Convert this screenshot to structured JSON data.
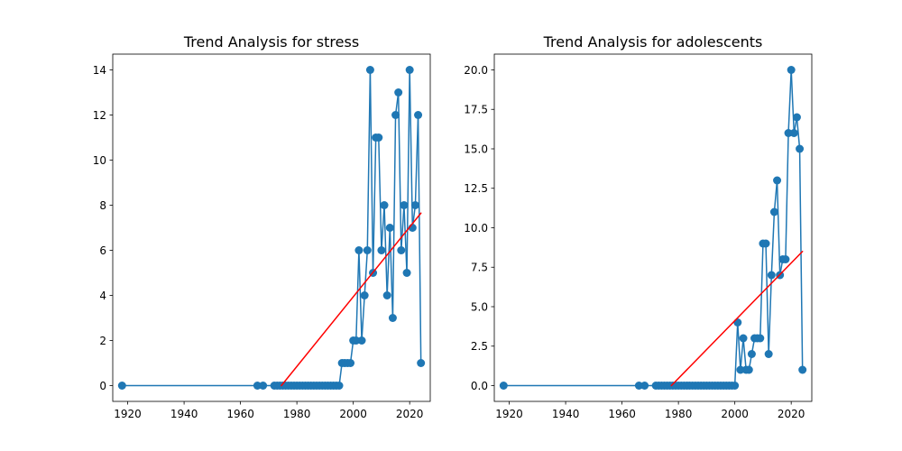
{
  "chart_data": [
    {
      "type": "line",
      "title": "Trend Analysis for stress",
      "xlabel": "",
      "ylabel": "",
      "xlim": [
        1914.7,
        2027.3
      ],
      "ylim": [
        -0.7,
        14.7
      ],
      "xticks": [
        "1920",
        "1940",
        "1960",
        "1980",
        "2000",
        "2020"
      ],
      "xtick_values": [
        1920,
        1940,
        1960,
        1980,
        2000,
        2020
      ],
      "yticks": [
        "0",
        "2",
        "4",
        "6",
        "8",
        "10",
        "12",
        "14"
      ],
      "ytick_values": [
        0,
        2,
        4,
        6,
        8,
        10,
        12,
        14
      ],
      "grid": false,
      "series": [
        {
          "style": "line-markers",
          "color": "#1f77b4",
          "x": [
            1918,
            1966,
            1968,
            1972,
            1973,
            1974,
            1975,
            1976,
            1977,
            1978,
            1979,
            1980,
            1981,
            1982,
            1983,
            1984,
            1985,
            1986,
            1987,
            1988,
            1989,
            1990,
            1991,
            1992,
            1993,
            1994,
            1995,
            1996,
            1997,
            1998,
            1999,
            2000,
            2001,
            2002,
            2003,
            2004,
            2005,
            2006,
            2007,
            2008,
            2009,
            2010,
            2011,
            2012,
            2013,
            2014,
            2015,
            2016,
            2017,
            2018,
            2019,
            2020,
            2021,
            2022,
            2023,
            2024
          ],
          "y": [
            0,
            0,
            0,
            0,
            0,
            0,
            0,
            0,
            0,
            0,
            0,
            0,
            0,
            0,
            0,
            0,
            0,
            0,
            0,
            0,
            0,
            0,
            0,
            0,
            0,
            0,
            0,
            1,
            1,
            1,
            1,
            2,
            2,
            6,
            2,
            4,
            6,
            14,
            5,
            11,
            11,
            6,
            8,
            4,
            7,
            3,
            12,
            13,
            6,
            8,
            5,
            14,
            7,
            8,
            12,
            1
          ]
        },
        {
          "style": "trend-line",
          "color": "#ff0000",
          "x": [
            1974.5,
            2024
          ],
          "y": [
            0,
            7.65
          ]
        }
      ]
    },
    {
      "type": "line",
      "title": "Trend Analysis for adolescents",
      "xlabel": "",
      "ylabel": "",
      "xlim": [
        1914.7,
        2027.3
      ],
      "ylim": [
        -1.0,
        21.0
      ],
      "xticks": [
        "1920",
        "1940",
        "1960",
        "1980",
        "2000",
        "2020"
      ],
      "xtick_values": [
        1920,
        1940,
        1960,
        1980,
        2000,
        2020
      ],
      "yticks": [
        "0.0",
        "2.5",
        "5.0",
        "7.5",
        "10.0",
        "12.5",
        "15.0",
        "17.5",
        "20.0"
      ],
      "ytick_values": [
        0,
        2.5,
        5,
        7.5,
        10,
        12.5,
        15,
        17.5,
        20
      ],
      "grid": false,
      "series": [
        {
          "style": "line-markers",
          "color": "#1f77b4",
          "x": [
            1918,
            1966,
            1968,
            1972,
            1973,
            1974,
            1975,
            1976,
            1977,
            1978,
            1979,
            1980,
            1981,
            1982,
            1983,
            1984,
            1985,
            1986,
            1987,
            1988,
            1989,
            1990,
            1991,
            1992,
            1993,
            1994,
            1995,
            1996,
            1997,
            1998,
            1999,
            2000,
            2001,
            2002,
            2003,
            2004,
            2005,
            2006,
            2007,
            2008,
            2009,
            2010,
            2011,
            2012,
            2013,
            2014,
            2015,
            2016,
            2017,
            2018,
            2019,
            2020,
            2021,
            2022,
            2023,
            2024
          ],
          "y": [
            0,
            0,
            0,
            0,
            0,
            0,
            0,
            0,
            0,
            0,
            0,
            0,
            0,
            0,
            0,
            0,
            0,
            0,
            0,
            0,
            0,
            0,
            0,
            0,
            0,
            0,
            0,
            0,
            0,
            0,
            0,
            0,
            4,
            1,
            3,
            1,
            1,
            2,
            3,
            3,
            3,
            9,
            9,
            2,
            7,
            11,
            13,
            7,
            8,
            8,
            16,
            20,
            16,
            17,
            15,
            1
          ]
        },
        {
          "style": "trend-line",
          "color": "#ff0000",
          "x": [
            1977.5,
            2024
          ],
          "y": [
            0,
            8.5
          ]
        }
      ]
    }
  ]
}
